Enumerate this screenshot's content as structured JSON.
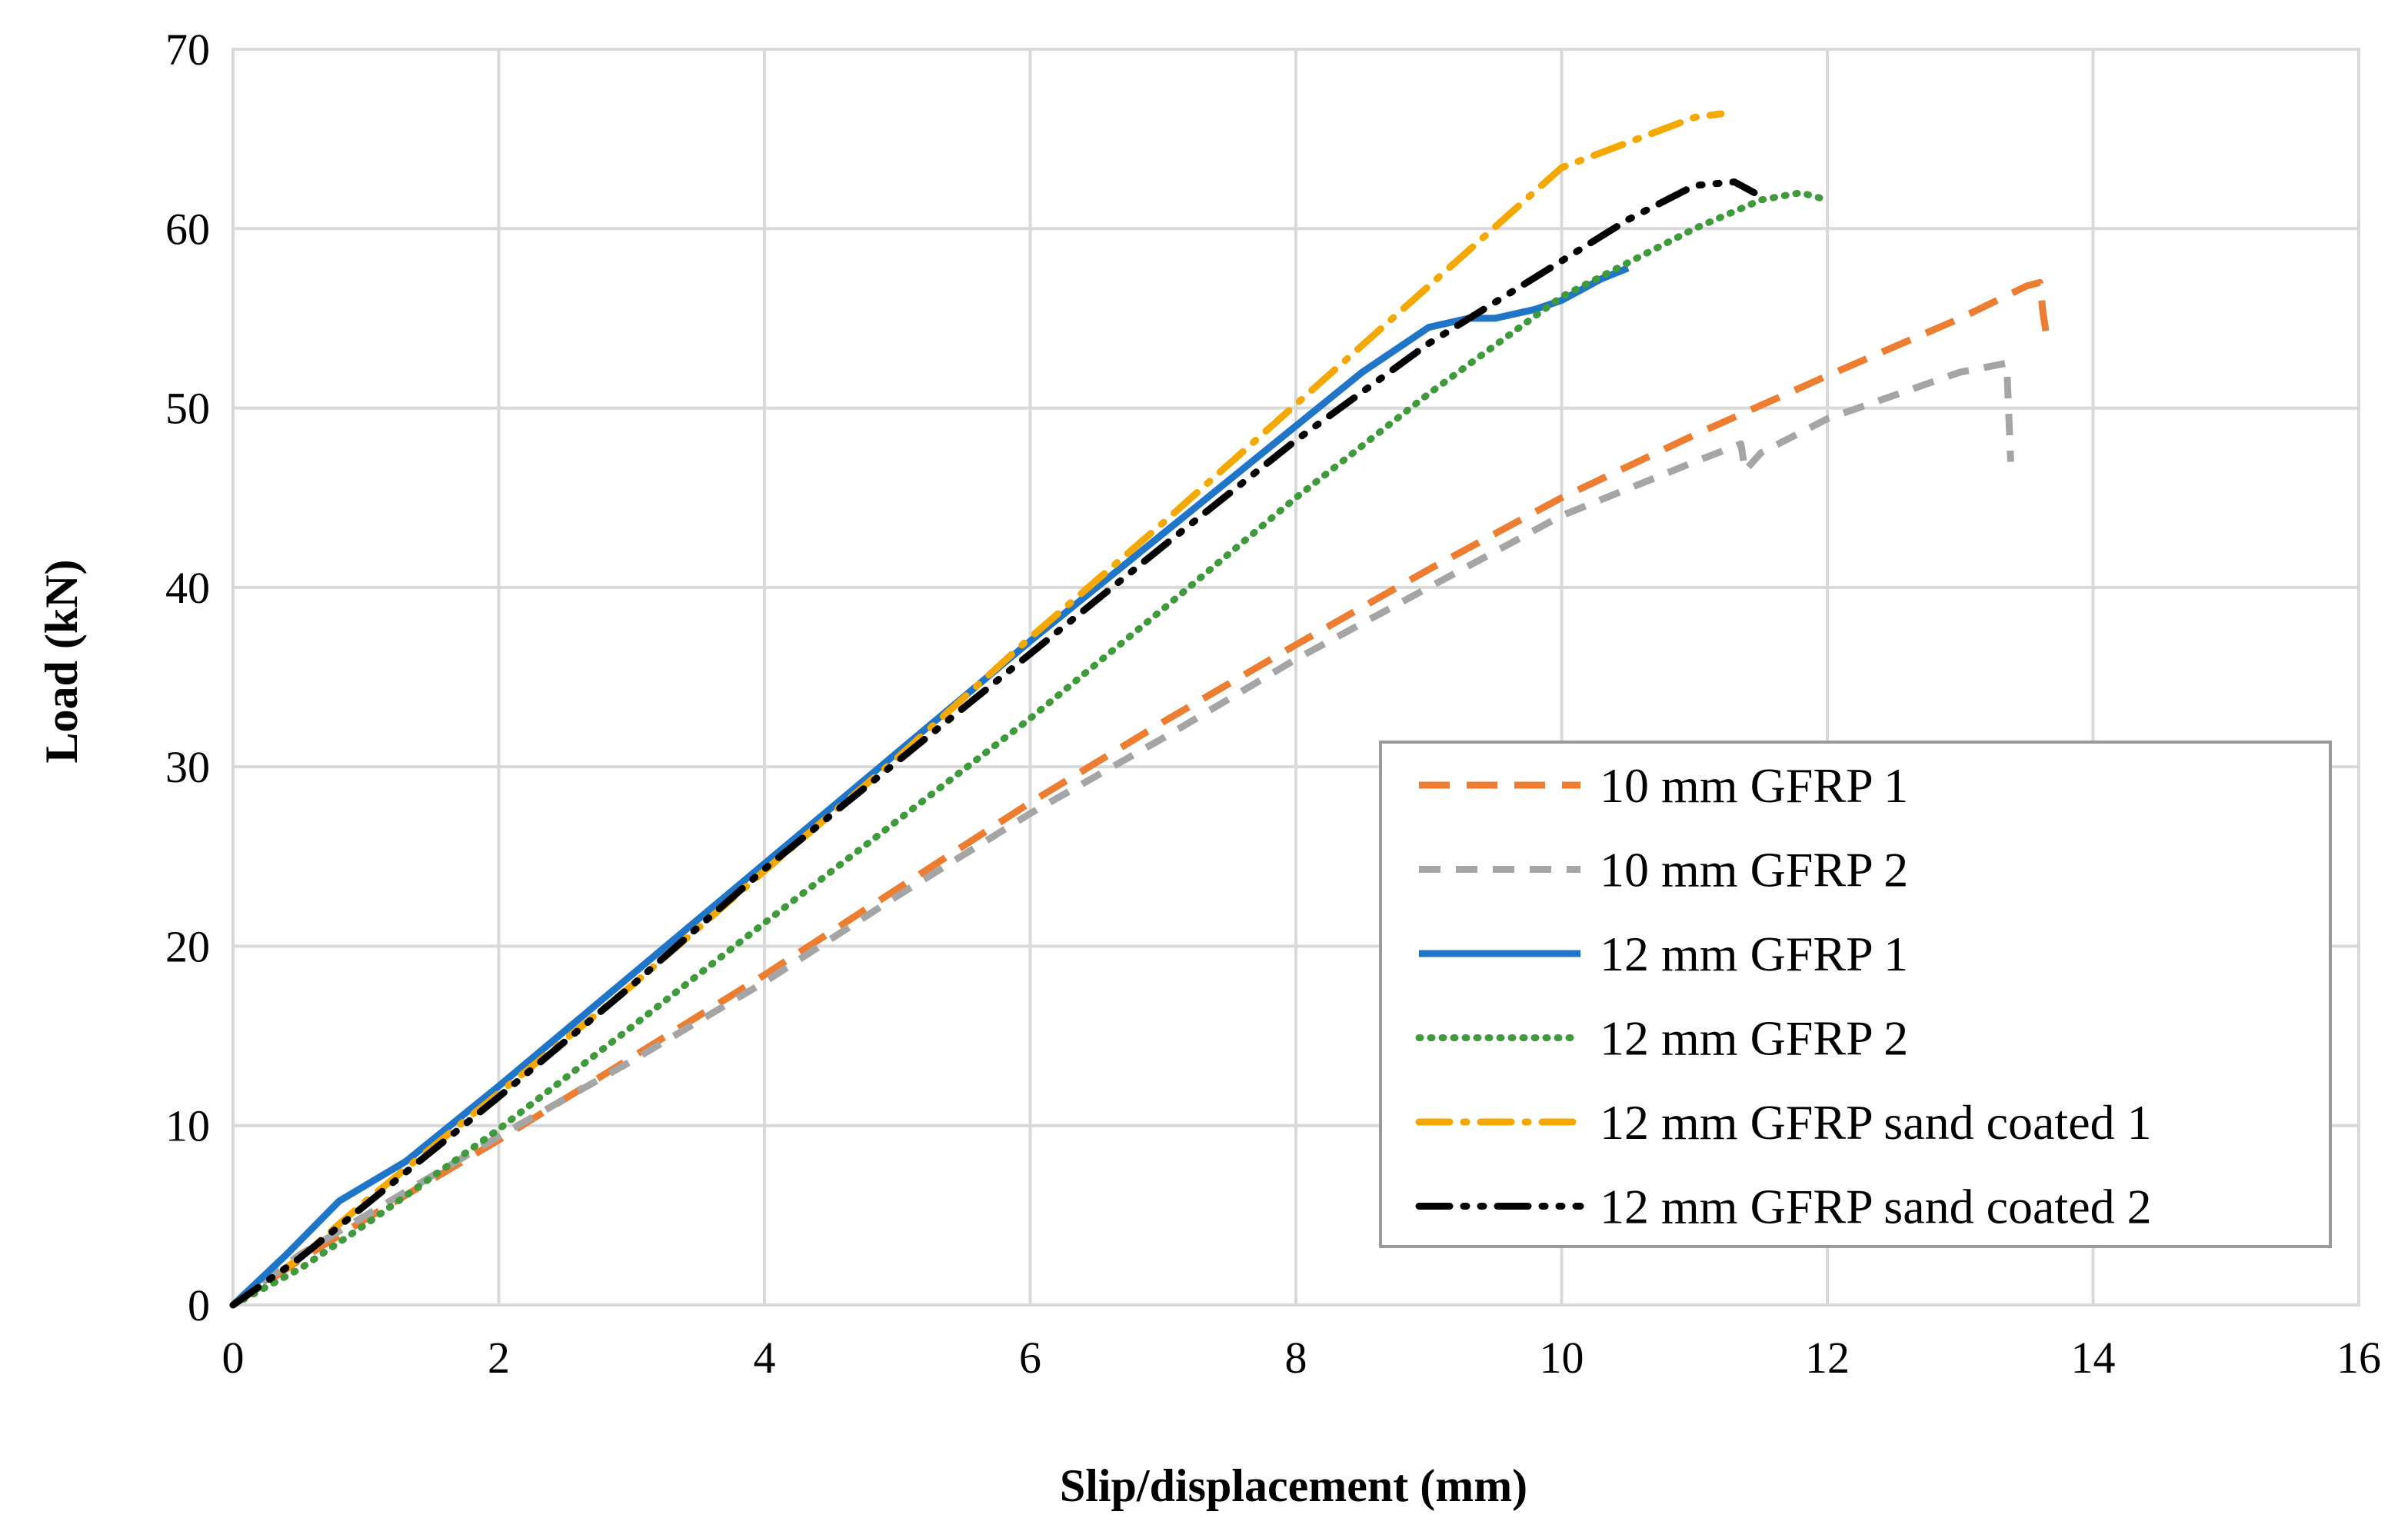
{
  "chart_data": {
    "type": "line",
    "title": "",
    "xlabel": "Slip/displacement (mm)",
    "ylabel": "Load (kN)",
    "xlim": [
      0,
      16
    ],
    "ylim": [
      0,
      70
    ],
    "xticks": [
      0,
      2,
      4,
      6,
      8,
      10,
      12,
      14,
      16
    ],
    "yticks": [
      0,
      10,
      20,
      30,
      40,
      50,
      60,
      70
    ],
    "grid": true,
    "legend_position": "bottom-right",
    "series": [
      {
        "name": "10 mm GFRP 1",
        "color": "#ED7D31",
        "style": "long-dash",
        "points": [
          [
            0,
            0
          ],
          [
            0.5,
            2.5
          ],
          [
            1,
            4.8
          ],
          [
            2,
            9.2
          ],
          [
            3,
            13.8
          ],
          [
            4,
            18.4
          ],
          [
            5,
            23.2
          ],
          [
            6,
            28
          ],
          [
            7,
            32.5
          ],
          [
            8,
            36.8
          ],
          [
            9,
            41
          ],
          [
            10,
            45
          ],
          [
            11,
            48.5
          ],
          [
            12,
            51.8
          ],
          [
            13,
            55
          ],
          [
            13.5,
            56.8
          ],
          [
            13.6,
            57
          ],
          [
            13.62,
            55.5
          ],
          [
            13.65,
            54
          ]
        ]
      },
      {
        "name": "10 mm GFRP 2",
        "color": "#A5A5A5",
        "style": "dash",
        "points": [
          [
            0,
            0
          ],
          [
            0.5,
            2.8
          ],
          [
            1,
            5
          ],
          [
            2,
            9.4
          ],
          [
            3,
            13.6
          ],
          [
            4,
            18
          ],
          [
            5,
            22.8
          ],
          [
            6,
            27.4
          ],
          [
            7,
            31.6
          ],
          [
            8,
            36
          ],
          [
            9,
            40
          ],
          [
            10,
            44
          ],
          [
            11,
            47
          ],
          [
            11.35,
            48
          ],
          [
            11.38,
            46.5
          ],
          [
            11.5,
            47.5
          ],
          [
            12,
            49.4
          ],
          [
            13,
            52
          ],
          [
            13.35,
            52.5
          ],
          [
            13.38,
            47
          ]
        ]
      },
      {
        "name": "12 mm GFRP 1",
        "color": "#1F75C7",
        "style": "solid",
        "points": [
          [
            0,
            0
          ],
          [
            0.4,
            2.8
          ],
          [
            0.8,
            5.8
          ],
          [
            1.3,
            8
          ],
          [
            2,
            12.2
          ],
          [
            3,
            18.4
          ],
          [
            4,
            24.6
          ],
          [
            5,
            30.8
          ],
          [
            6,
            37
          ],
          [
            7,
            43
          ],
          [
            8,
            49
          ],
          [
            8.5,
            52
          ],
          [
            9,
            54.5
          ],
          [
            9.3,
            55
          ],
          [
            9.5,
            55
          ],
          [
            9.8,
            55.5
          ],
          [
            10,
            56
          ],
          [
            10.3,
            57.2
          ],
          [
            10.5,
            57.8
          ]
        ]
      },
      {
        "name": "12 mm GFRP 2",
        "color": "#3E9A3A",
        "style": "dotted",
        "points": [
          [
            0,
            0
          ],
          [
            0.5,
            2
          ],
          [
            1,
            4.5
          ],
          [
            2,
            9.8
          ],
          [
            3,
            15.5
          ],
          [
            4,
            21.3
          ],
          [
            5,
            27
          ],
          [
            6,
            32.7
          ],
          [
            7,
            38.8
          ],
          [
            8,
            45
          ],
          [
            9,
            50.8
          ],
          [
            10,
            56.2
          ],
          [
            11,
            60
          ],
          [
            11.5,
            61.6
          ],
          [
            11.8,
            62
          ],
          [
            12,
            61.6
          ]
        ]
      },
      {
        "name": "12 mm GFRP sand coated 1",
        "color": "#F5A800",
        "style": "dash-dot",
        "points": [
          [
            0,
            0
          ],
          [
            0.5,
            2.6
          ],
          [
            1,
            5.8
          ],
          [
            2,
            11.8
          ],
          [
            3,
            17.8
          ],
          [
            4,
            24.2
          ],
          [
            5,
            30.5
          ],
          [
            6,
            37.2
          ],
          [
            7,
            43.6
          ],
          [
            8,
            50.2
          ],
          [
            9,
            56.8
          ],
          [
            10,
            63.4
          ],
          [
            10.5,
            64.8
          ],
          [
            11,
            66.2
          ],
          [
            11.2,
            66.4
          ]
        ]
      },
      {
        "name": "12 mm GFRP sand coated 2",
        "color": "#000000",
        "style": "dash-dot-dot",
        "points": [
          [
            0,
            0
          ],
          [
            0.5,
            2.6
          ],
          [
            1,
            5.6
          ],
          [
            2,
            11.6
          ],
          [
            3,
            17.8
          ],
          [
            4,
            24.3
          ],
          [
            5,
            30.3
          ],
          [
            6,
            36.3
          ],
          [
            7,
            42.3
          ],
          [
            8,
            48.2
          ],
          [
            9,
            53.6
          ],
          [
            10,
            58.2
          ],
          [
            10.5,
            60.5
          ],
          [
            11,
            62.4
          ],
          [
            11.3,
            62.6
          ],
          [
            11.45,
            62
          ]
        ]
      }
    ]
  }
}
